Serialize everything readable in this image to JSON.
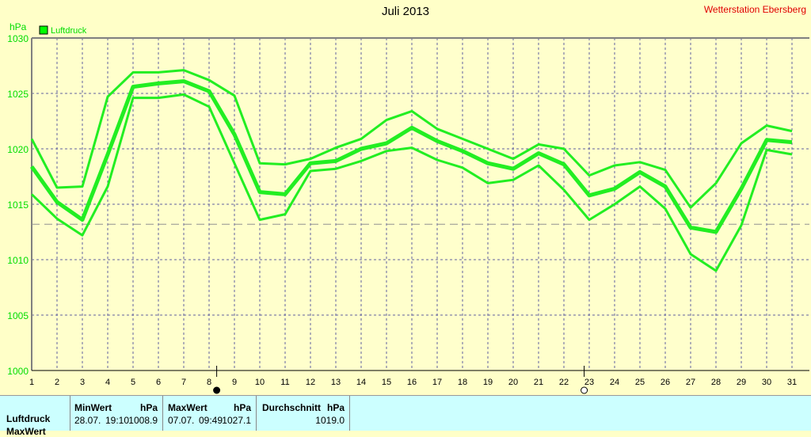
{
  "title": "Juli 2013",
  "station": "Wetterstation Ebersberg",
  "colors": {
    "line": "#22ee22",
    "grid": "#6060a0",
    "axis": "#808080",
    "background": "#ffffc8",
    "table": "#ccffff"
  },
  "chart_data": {
    "type": "line",
    "ylabel": "hPa",
    "legend": "Luftdruck",
    "legend_placement": "top-left",
    "grid": true,
    "ylim": [
      1000,
      1030
    ],
    "yticks": [
      1000,
      1005,
      1010,
      1015,
      1020,
      1025,
      1030
    ],
    "x": [
      1,
      2,
      3,
      4,
      5,
      6,
      7,
      8,
      9,
      10,
      11,
      12,
      13,
      14,
      15,
      16,
      17,
      18,
      19,
      20,
      21,
      22,
      23,
      24,
      25,
      26,
      27,
      28,
      29,
      30,
      31
    ],
    "series": [
      {
        "values": [
          1020.9,
          1016.5,
          1016.6,
          1024.7,
          1026.9,
          1026.9,
          1027.1,
          1026.2,
          1024.8,
          1018.7,
          1018.6,
          1019.1,
          1020.1,
          1020.9,
          1022.6,
          1023.4,
          1021.8,
          1020.9,
          1020.0,
          1019.1,
          1020.4,
          1020.0,
          1017.6,
          1018.5,
          1018.8,
          1018.1,
          1014.7,
          1016.9,
          1020.5,
          1022.1,
          1021.6
        ],
        "width": 3
      },
      {
        "values": [
          1018.4,
          1015.2,
          1013.6,
          1019.5,
          1025.6,
          1025.9,
          1026.1,
          1025.2,
          1021.3,
          1016.1,
          1015.9,
          1018.7,
          1018.9,
          1020.0,
          1020.5,
          1021.9,
          1020.7,
          1019.8,
          1018.7,
          1018.2,
          1019.6,
          1018.6,
          1015.8,
          1016.4,
          1017.9,
          1016.6,
          1012.9,
          1012.5,
          1016.4,
          1020.8,
          1020.6
        ],
        "width": 5
      },
      {
        "values": [
          1015.9,
          1013.7,
          1012.2,
          1016.6,
          1024.6,
          1024.6,
          1024.9,
          1023.8,
          1018.7,
          1013.6,
          1014.1,
          1018.0,
          1018.2,
          1018.9,
          1019.8,
          1020.1,
          1019.0,
          1018.3,
          1016.9,
          1017.2,
          1018.5,
          1016.3,
          1013.6,
          1015.0,
          1016.6,
          1014.6,
          1010.5,
          1009.0,
          1013.1,
          1019.9,
          1019.5
        ],
        "width": 3
      }
    ],
    "reference_line": 1013.2,
    "markers": [
      {
        "day": 8.3,
        "type": "filled"
      },
      {
        "day": 22.8,
        "type": "open"
      }
    ]
  },
  "table": {
    "row_label": "Luftdruck",
    "row_label2": "MaxWert",
    "min": {
      "header": "MinWert",
      "unit": "hPa",
      "date": "28.07.",
      "time": "19:10",
      "value": "1008.9"
    },
    "max": {
      "header": "MaxWert",
      "unit": "hPa",
      "date": "07.07.",
      "time": "09:49",
      "value": "1027.1"
    },
    "avg": {
      "header": "Durchschnitt",
      "unit": "hPa",
      "value": "1019.0"
    }
  }
}
